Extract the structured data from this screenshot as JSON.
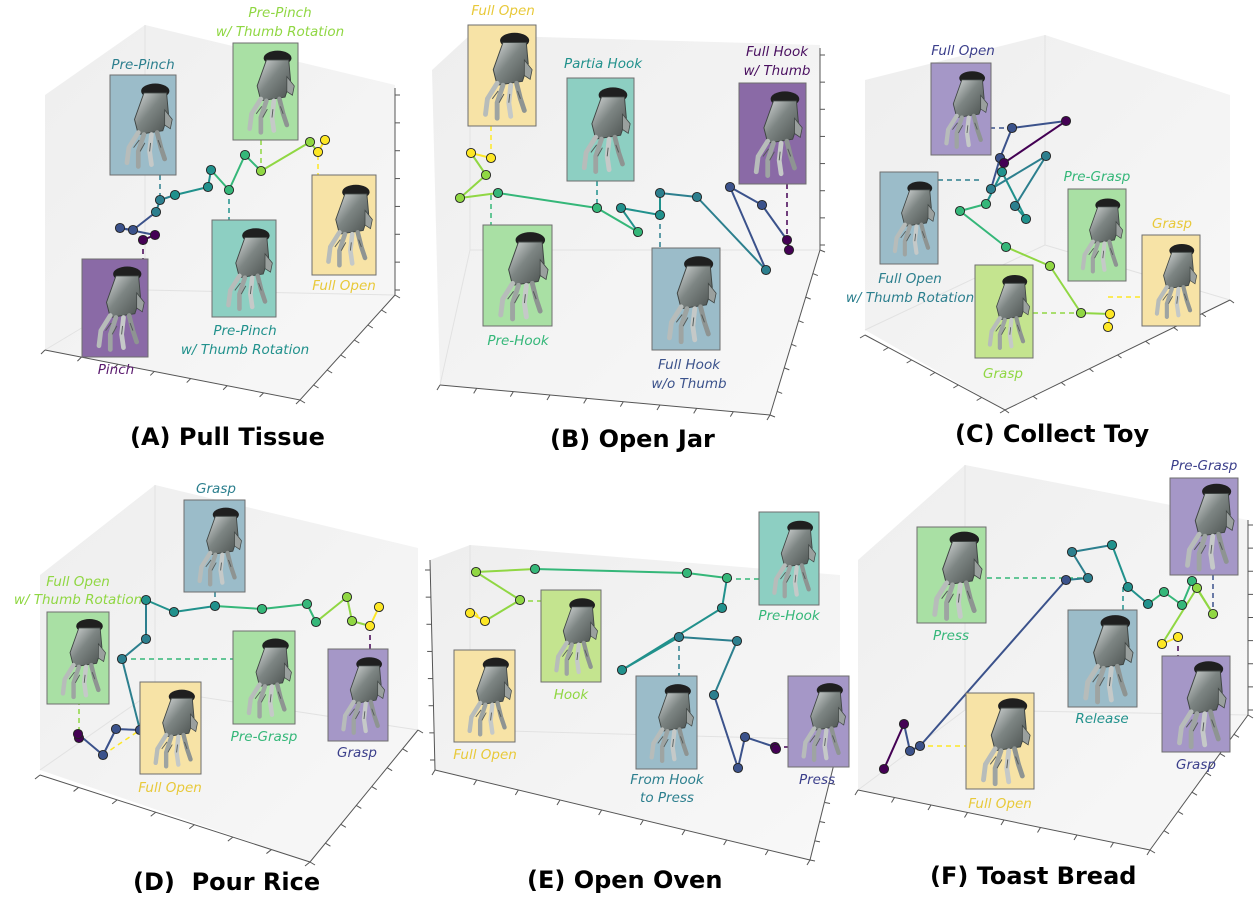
{
  "colors": {
    "c0": "#440154",
    "c1": "#3b528b",
    "c2": "#2c7f8e",
    "c3": "#21918c",
    "c4": "#35b779",
    "c5": "#90d743",
    "c6": "#fde725",
    "box_purple": "#a597c7",
    "box_purple_dark": "#8a6aa6",
    "box_blue": "#9bbcc9",
    "box_teal": "#8dcfc2",
    "box_green": "#a9e0a4",
    "box_yellow": "#f7e3a6",
    "box_lime": "#c4e48f"
  },
  "panels": [
    {
      "title": "(A) Pull Tissue",
      "labels": {
        "pre_pinch": "Pre-Pinch",
        "pre_pinch_thumb_top_1": "Pre-Pinch",
        "pre_pinch_thumb_top_2": "w/ Thumb Rotation",
        "pre_pinch_thumb_bottom_1": "Pre-Pinch",
        "pre_pinch_thumb_bottom_2": "w/ Thumb Rotation",
        "full_open": "Full Open",
        "pinch": "Pinch"
      }
    },
    {
      "title": "(B) Open Jar",
      "labels": {
        "full_open": "Full Open",
        "partia_hook": "Partia Hook",
        "full_hook_thumb_1": "Full Hook",
        "full_hook_thumb_2": "w/ Thumb",
        "pre_hook": "Pre-Hook",
        "full_hook_wo_1": "Full Hook",
        "full_hook_wo_2": "w/o Thumb"
      }
    },
    {
      "title": "(C) Collect Toy",
      "labels": {
        "full_open": "Full Open",
        "full_open_thumb_1": "Full Open",
        "full_open_thumb_2": "w/ Thumb Rotation",
        "pre_grasp": "Pre-Grasp",
        "grasp_yellow": "Grasp",
        "grasp_lime": "Grasp"
      }
    },
    {
      "title": "(D)  Pour Rice",
      "labels": {
        "grasp_top": "Grasp",
        "full_open_thumb_1": "Full Open",
        "full_open_thumb_2": "w/ Thumb Rotation",
        "pre_grasp": "Pre-Grasp",
        "full_open": "Full Open",
        "grasp_purple": "Grasp"
      }
    },
    {
      "title": "(E) Open Oven",
      "labels": {
        "pre_hook": "Pre-Hook",
        "hook": "Hook",
        "full_open": "Full Open",
        "from_hook_1": "From Hook",
        "from_hook_2": "to Press",
        "press": "Press"
      }
    },
    {
      "title": "(F) Toast Bread",
      "labels": {
        "pre_grasp": "Pre-Grasp",
        "press": "Press",
        "release": "Release",
        "grasp": "Grasp",
        "full_open": "Full Open"
      }
    }
  ]
}
